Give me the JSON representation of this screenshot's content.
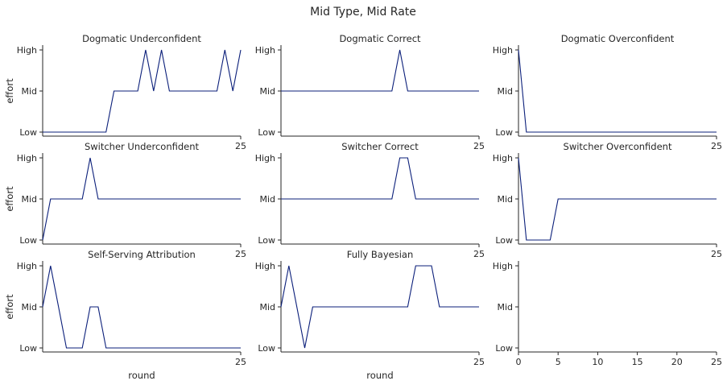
{
  "figure": {
    "title": "Mid Type, Mid Rate"
  },
  "colors": {
    "line": "#0b1f7a",
    "axis": "#262626",
    "text": "#262626"
  },
  "chart_data": [
    {
      "type": "line",
      "title": "Dogmatic Underconfident",
      "ylabel": "effort",
      "xlabel": "",
      "yticks": [
        "Low",
        "Mid",
        "High"
      ],
      "xticks": [
        "25"
      ],
      "xlim": [
        0,
        25
      ],
      "x": [
        0,
        1,
        2,
        3,
        4,
        5,
        6,
        7,
        8,
        9,
        10,
        11,
        12,
        13,
        14,
        15,
        16,
        17,
        18,
        19,
        20,
        21,
        22,
        23,
        24,
        25
      ],
      "values": [
        "Low",
        "Low",
        "Low",
        "Low",
        "Low",
        "Low",
        "Low",
        "Low",
        "Low",
        "Mid",
        "Mid",
        "Mid",
        "Mid",
        "High",
        "Mid",
        "High",
        "Mid",
        "Mid",
        "Mid",
        "Mid",
        "Mid",
        "Mid",
        "Mid",
        "High",
        "Mid",
        "High"
      ]
    },
    {
      "type": "line",
      "title": "Dogmatic Correct",
      "ylabel": "",
      "xlabel": "",
      "yticks": [
        "Low",
        "Mid",
        "High"
      ],
      "xticks": [
        "25"
      ],
      "xlim": [
        0,
        25
      ],
      "x": [
        0,
        1,
        2,
        3,
        4,
        5,
        6,
        7,
        8,
        9,
        10,
        11,
        12,
        13,
        14,
        15,
        16,
        17,
        18,
        19,
        20,
        21,
        22,
        23,
        24,
        25
      ],
      "values": [
        "Mid",
        "Mid",
        "Mid",
        "Mid",
        "Mid",
        "Mid",
        "Mid",
        "Mid",
        "Mid",
        "Mid",
        "Mid",
        "Mid",
        "Mid",
        "Mid",
        "Mid",
        "High",
        "Mid",
        "Mid",
        "Mid",
        "Mid",
        "Mid",
        "Mid",
        "Mid",
        "Mid",
        "Mid",
        "Mid"
      ]
    },
    {
      "type": "line",
      "title": "Dogmatic Overconfident",
      "ylabel": "",
      "xlabel": "",
      "yticks": [
        "Low",
        "Mid",
        "High"
      ],
      "xticks": [
        "25"
      ],
      "xlim": [
        0,
        25
      ],
      "x": [
        0,
        1,
        2,
        3,
        4,
        5,
        6,
        7,
        8,
        9,
        10,
        11,
        12,
        13,
        14,
        15,
        16,
        17,
        18,
        19,
        20,
        21,
        22,
        23,
        24,
        25
      ],
      "values": [
        "High",
        "Low",
        "Low",
        "Low",
        "Low",
        "Low",
        "Low",
        "Low",
        "Low",
        "Low",
        "Low",
        "Low",
        "Low",
        "Low",
        "Low",
        "Low",
        "Low",
        "Low",
        "Low",
        "Low",
        "Low",
        "Low",
        "Low",
        "Low",
        "Low",
        "Low"
      ]
    },
    {
      "type": "line",
      "title": "Switcher Underconfident",
      "ylabel": "effort",
      "xlabel": "",
      "yticks": [
        "Low",
        "Mid",
        "High"
      ],
      "xticks": [
        "25"
      ],
      "xlim": [
        0,
        25
      ],
      "x": [
        0,
        1,
        2,
        3,
        4,
        5,
        6,
        7,
        8,
        9,
        10,
        11,
        12,
        13,
        14,
        15,
        16,
        17,
        18,
        19,
        20,
        21,
        22,
        23,
        24,
        25
      ],
      "values": [
        "Low",
        "Mid",
        "Mid",
        "Mid",
        "Mid",
        "Mid",
        "High",
        "Mid",
        "Mid",
        "Mid",
        "Mid",
        "Mid",
        "Mid",
        "Mid",
        "Mid",
        "Mid",
        "Mid",
        "Mid",
        "Mid",
        "Mid",
        "Mid",
        "Mid",
        "Mid",
        "Mid",
        "Mid",
        "Mid"
      ]
    },
    {
      "type": "line",
      "title": "Switcher Correct",
      "ylabel": "",
      "xlabel": "",
      "yticks": [
        "Low",
        "Mid",
        "High"
      ],
      "xticks": [
        "25"
      ],
      "xlim": [
        0,
        25
      ],
      "x": [
        0,
        1,
        2,
        3,
        4,
        5,
        6,
        7,
        8,
        9,
        10,
        11,
        12,
        13,
        14,
        15,
        16,
        17,
        18,
        19,
        20,
        21,
        22,
        23,
        24,
        25
      ],
      "values": [
        "Mid",
        "Mid",
        "Mid",
        "Mid",
        "Mid",
        "Mid",
        "Mid",
        "Mid",
        "Mid",
        "Mid",
        "Mid",
        "Mid",
        "Mid",
        "Mid",
        "Mid",
        "High",
        "High",
        "Mid",
        "Mid",
        "Mid",
        "Mid",
        "Mid",
        "Mid",
        "Mid",
        "Mid",
        "Mid"
      ]
    },
    {
      "type": "line",
      "title": "Switcher Overconfident",
      "ylabel": "",
      "xlabel": "",
      "yticks": [
        "Low",
        "Mid",
        "High"
      ],
      "xticks": [
        "25"
      ],
      "xlim": [
        0,
        25
      ],
      "x": [
        0,
        1,
        2,
        3,
        4,
        5,
        6,
        7,
        8,
        9,
        10,
        11,
        12,
        13,
        14,
        15,
        16,
        17,
        18,
        19,
        20,
        21,
        22,
        23,
        24,
        25
      ],
      "values": [
        "High",
        "Low",
        "Low",
        "Low",
        "Low",
        "Mid",
        "Mid",
        "Mid",
        "Mid",
        "Mid",
        "Mid",
        "Mid",
        "Mid",
        "Mid",
        "Mid",
        "Mid",
        "Mid",
        "Mid",
        "Mid",
        "Mid",
        "Mid",
        "Mid",
        "Mid",
        "Mid",
        "Mid",
        "Mid"
      ]
    },
    {
      "type": "line",
      "title": "Self-Serving Attribution",
      "ylabel": "effort",
      "xlabel": "round",
      "yticks": [
        "Low",
        "Mid",
        "High"
      ],
      "xticks": [
        "25"
      ],
      "xlim": [
        0,
        25
      ],
      "x": [
        0,
        1,
        2,
        3,
        4,
        5,
        6,
        7,
        8,
        9,
        10,
        11,
        12,
        13,
        14,
        15,
        16,
        17,
        18,
        19,
        20,
        21,
        22,
        23,
        24,
        25
      ],
      "values": [
        "Mid",
        "High",
        "Mid",
        "Low",
        "Low",
        "Low",
        "Mid",
        "Mid",
        "Low",
        "Low",
        "Low",
        "Low",
        "Low",
        "Low",
        "Low",
        "Low",
        "Low",
        "Low",
        "Low",
        "Low",
        "Low",
        "Low",
        "Low",
        "Low",
        "Low",
        "Low"
      ]
    },
    {
      "type": "line",
      "title": "Fully Bayesian",
      "ylabel": "",
      "xlabel": "round",
      "yticks": [
        "Low",
        "Mid",
        "High"
      ],
      "xticks": [
        "25"
      ],
      "xlim": [
        0,
        25
      ],
      "x": [
        0,
        1,
        2,
        3,
        4,
        5,
        6,
        7,
        8,
        9,
        10,
        11,
        12,
        13,
        14,
        15,
        16,
        17,
        18,
        19,
        20,
        21,
        22,
        23,
        24,
        25
      ],
      "values": [
        "Mid",
        "High",
        "Mid",
        "Low",
        "Mid",
        "Mid",
        "Mid",
        "Mid",
        "Mid",
        "Mid",
        "Mid",
        "Mid",
        "Mid",
        "Mid",
        "Mid",
        "Mid",
        "Mid",
        "High",
        "High",
        "High",
        "Mid",
        "Mid",
        "Mid",
        "Mid",
        "Mid",
        "Mid"
      ]
    },
    {
      "type": "line",
      "title": "",
      "ylabel": "",
      "xlabel": "",
      "yticks": [
        "Low",
        "Mid",
        "High"
      ],
      "xticks": [
        "0",
        "5",
        "10",
        "15",
        "20",
        "25"
      ],
      "xlim": [
        0,
        25
      ],
      "x": [],
      "values": []
    }
  ]
}
